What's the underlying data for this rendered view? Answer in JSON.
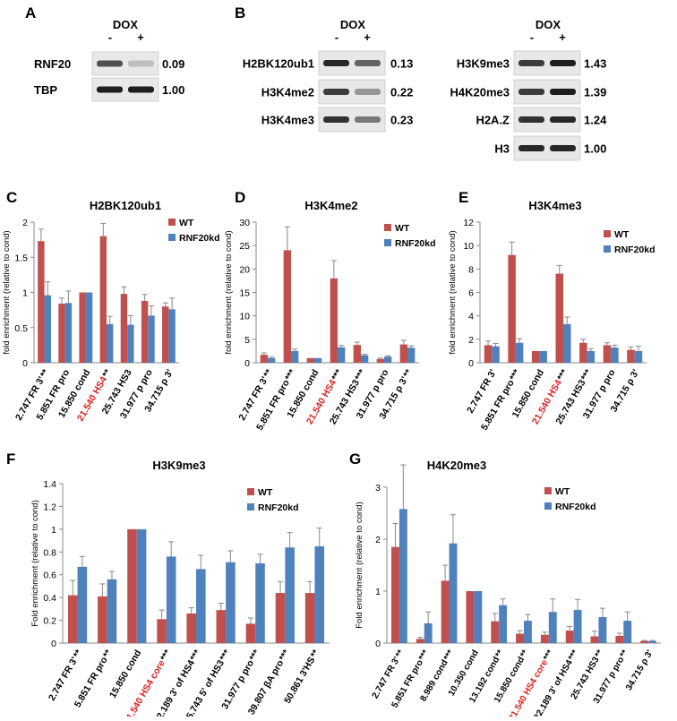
{
  "colors": {
    "wt": "#c0504d",
    "kd": "#4f81bd",
    "err": "#888888",
    "highlight": "#e02020"
  },
  "blots": [
    {
      "panel": "A",
      "header": "DOX",
      "signs": [
        "-",
        "+"
      ],
      "rows": [
        {
          "label": "RNF20",
          "ratio": "0.09",
          "minus_intensity": 0.7,
          "plus_intensity": 0.15
        },
        {
          "label": "TBP",
          "ratio": "1.00",
          "minus_intensity": 0.95,
          "plus_intensity": 0.95
        }
      ]
    },
    {
      "panel": "B",
      "header": "DOX",
      "signs": [
        "-",
        "+"
      ],
      "rows": [
        {
          "label": "H2BK120ub1",
          "ratio": "0.13",
          "minus_intensity": 0.9,
          "plus_intensity": 0.6
        },
        {
          "label": "H3K4me2",
          "ratio": "0.22",
          "minus_intensity": 0.8,
          "plus_intensity": 0.35
        },
        {
          "label": "H3K4me3",
          "ratio": "0.23",
          "minus_intensity": 0.85,
          "plus_intensity": 0.5
        }
      ]
    },
    {
      "panel": "",
      "header": "DOX",
      "signs": [
        "-",
        "+"
      ],
      "rows": [
        {
          "label": "H3K9me3",
          "ratio": "1.43",
          "minus_intensity": 0.8,
          "plus_intensity": 0.95
        },
        {
          "label": "H4K20me3",
          "ratio": "1.39",
          "minus_intensity": 0.8,
          "plus_intensity": 0.95
        },
        {
          "label": "H2A.Z",
          "ratio": "1.24",
          "minus_intensity": 0.85,
          "plus_intensity": 0.9
        },
        {
          "label": "H3",
          "ratio": "1.00",
          "minus_intensity": 0.9,
          "plus_intensity": 0.9
        }
      ]
    }
  ],
  "chart_data": [
    {
      "panel": "C",
      "type": "bar",
      "title": "H2BK120ub1",
      "ylabel": "fold enrichment (relative to cond)",
      "ylim": [
        0,
        2
      ],
      "yticks": [
        "0",
        "0.5",
        "1",
        "1.5",
        "2"
      ],
      "ytick_values": [
        0,
        0.5,
        1,
        1.5,
        2
      ],
      "legend": [
        "WT",
        "RNF20kd"
      ],
      "categories": [
        "2.747 FR 3'",
        "5.851 FR pro",
        "15.850 cond",
        "21.540 HS4",
        "25.743 HS3",
        "31.977 p pro",
        "34.715 ρ 3'"
      ],
      "stars": [
        "**",
        "",
        "",
        "**",
        "",
        "",
        ""
      ],
      "highlight": [
        false,
        false,
        false,
        true,
        false,
        false,
        false
      ],
      "series": [
        {
          "name": "WT",
          "values": [
            1.73,
            0.84,
            1.0,
            1.8,
            0.98,
            0.88,
            0.8
          ],
          "errors": [
            0.17,
            0.08,
            0,
            0.18,
            0.1,
            0.09,
            0.05
          ]
        },
        {
          "name": "RNF20kd",
          "values": [
            0.96,
            0.85,
            1.0,
            0.55,
            0.54,
            0.67,
            0.76
          ],
          "errors": [
            0.19,
            0.17,
            0,
            0.11,
            0.13,
            0.14,
            0.16
          ]
        }
      ]
    },
    {
      "panel": "D",
      "type": "bar",
      "title": "H3K4me2",
      "ylabel": "fold enrichment (relative to cond)",
      "ylim": [
        0,
        30
      ],
      "yticks": [
        "0",
        "5",
        "10",
        "15",
        "20",
        "25",
        "30"
      ],
      "ytick_values": [
        0,
        5,
        10,
        15,
        20,
        25,
        30
      ],
      "legend": [
        "WT",
        "RNF20kd"
      ],
      "categories": [
        "2.747 FR 3'",
        "5.851 FR pro",
        "15.850 cond",
        "21.540 HS4",
        "25.743 HS3",
        "31.977 p pro",
        "34.715 ρ 3'"
      ],
      "stars": [
        "**",
        "***",
        "",
        "***",
        "***",
        "",
        "**"
      ],
      "highlight": [
        false,
        false,
        false,
        true,
        false,
        false,
        false
      ],
      "series": [
        {
          "name": "WT",
          "values": [
            1.7,
            24.0,
            1.0,
            18.0,
            3.8,
            0.8,
            3.9
          ],
          "errors": [
            0.4,
            5.0,
            0,
            3.8,
            0.6,
            0.2,
            0.9
          ]
        },
        {
          "name": "RNF20kd",
          "values": [
            1.0,
            2.5,
            1.0,
            3.3,
            1.6,
            1.3,
            3.2
          ],
          "errors": [
            0.2,
            0.4,
            0,
            0.4,
            0.2,
            0.2,
            0.4
          ]
        }
      ]
    },
    {
      "panel": "E",
      "type": "bar",
      "title": "H3K4me3",
      "ylabel": "fold enrichment (relative to cond)",
      "ylim": [
        0,
        12
      ],
      "yticks": [
        "0",
        "2",
        "4",
        "6",
        "8",
        "10",
        "12"
      ],
      "ytick_values": [
        0,
        2,
        4,
        6,
        8,
        10,
        12
      ],
      "legend": [
        "WT",
        "RNF20kd"
      ],
      "categories": [
        "2.747 FR 3'",
        "5.851 FR pro",
        "15.850 cond",
        "21.540 HS4",
        "25.743 HS3",
        "31.977 p pro",
        "34.715 ρ 3'"
      ],
      "stars": [
        "",
        "***",
        "",
        "***",
        "***",
        "",
        ""
      ],
      "highlight": [
        false,
        false,
        false,
        true,
        false,
        false,
        false
      ],
      "series": [
        {
          "name": "WT",
          "values": [
            1.5,
            9.2,
            1.0,
            7.6,
            1.7,
            1.5,
            1.1
          ],
          "errors": [
            0.35,
            1.1,
            0,
            0.7,
            0.3,
            0.2,
            0.25
          ]
        },
        {
          "name": "RNF20kd",
          "values": [
            1.4,
            1.7,
            1.0,
            3.3,
            1.0,
            1.3,
            1.0
          ],
          "errors": [
            0.25,
            0.35,
            0,
            0.6,
            0.2,
            0.2,
            0.4
          ]
        }
      ]
    },
    {
      "panel": "F",
      "type": "bar",
      "title": "H3K9me3",
      "ylabel": "Fold enrichment (relative to cond)",
      "ylim": [
        0,
        1.4
      ],
      "yticks": [
        "0",
        "0.2",
        "0.4",
        "0.6",
        "0.8",
        "1",
        "1.2",
        "1.4"
      ],
      "ytick_values": [
        0,
        0.2,
        0.4,
        0.6,
        0.8,
        1,
        1.2,
        1.4
      ],
      "legend": [
        "WT",
        "RNF20kd"
      ],
      "categories": [
        "2.747 FR 3'",
        "5.851 FR pro",
        "15.850 cond",
        "21.540 HS4 core",
        "22.189 3' of HS4",
        "25.743 5' of HS3",
        "31.977 p pro",
        "39.807 βA pro",
        "50.861 3'HS"
      ],
      "stars": [
        "**",
        "**",
        "",
        "***",
        "***",
        "***",
        "***",
        "***",
        "**"
      ],
      "highlight": [
        false,
        false,
        false,
        true,
        false,
        false,
        false,
        false,
        false
      ],
      "series": [
        {
          "name": "WT",
          "values": [
            0.42,
            0.41,
            1.0,
            0.21,
            0.26,
            0.29,
            0.17,
            0.44,
            0.44
          ],
          "errors": [
            0.13,
            0.11,
            0,
            0.08,
            0.05,
            0.06,
            0.05,
            0.1,
            0.1
          ]
        },
        {
          "name": "RNF20kd",
          "values": [
            0.67,
            0.56,
            1.0,
            0.76,
            0.65,
            0.71,
            0.7,
            0.84,
            0.85
          ],
          "errors": [
            0.09,
            0.07,
            0,
            0.13,
            0.12,
            0.1,
            0.08,
            0.13,
            0.16
          ]
        }
      ]
    },
    {
      "panel": "G",
      "type": "bar",
      "title": "H4K20me3",
      "ylabel": "Fold enrichment (relative to cond)",
      "ylim": [
        0,
        3
      ],
      "yticks": [
        "0",
        "1",
        "2",
        "3"
      ],
      "ytick_values": [
        0,
        1,
        2,
        3
      ],
      "legend": [
        "WT",
        "RNF20kd"
      ],
      "categories": [
        "2.747 FR 3'",
        "5.851 FR pro",
        "8.989 cond",
        "10.350 cond",
        "13.192 cond",
        "15.850 cond",
        "21.540 HS4 core",
        "22.189 3' of HS4",
        "25.743 HS3",
        "31.977 p pro",
        "34.715 ρ 3'"
      ],
      "stars": [
        "**",
        "***",
        "***",
        "",
        "**",
        "**",
        "***",
        "***",
        "**",
        "**",
        ""
      ],
      "highlight": [
        false,
        false,
        false,
        false,
        false,
        false,
        true,
        false,
        false,
        false,
        false
      ],
      "series": [
        {
          "name": "WT",
          "values": [
            1.85,
            0.08,
            1.2,
            1.0,
            0.42,
            0.18,
            0.16,
            0.24,
            0.13,
            0.14,
            0.04
          ],
          "errors": [
            0.45,
            0.03,
            0.3,
            0,
            0.15,
            0.06,
            0.05,
            0.08,
            0.1,
            0.05,
            0.01
          ]
        },
        {
          "name": "RNF20kd",
          "values": [
            2.58,
            0.38,
            1.92,
            1.0,
            0.73,
            0.43,
            0.6,
            0.64,
            0.5,
            0.43,
            0.04
          ],
          "errors": [
            0.85,
            0.22,
            0.55,
            0,
            0.12,
            0.12,
            0.25,
            0.2,
            0.17,
            0.17,
            0.01
          ]
        }
      ]
    }
  ]
}
